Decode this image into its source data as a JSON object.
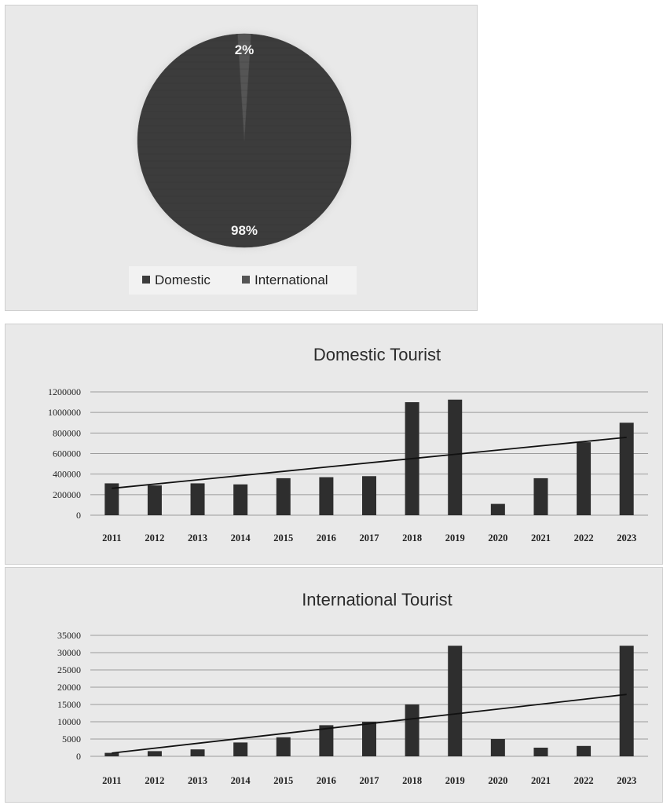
{
  "chart_data": [
    {
      "type": "pie",
      "categories": [
        "Domestic",
        "International"
      ],
      "values": [
        98,
        2
      ],
      "labels": [
        "98%",
        "2%"
      ],
      "legend": [
        "Domestic",
        "International"
      ],
      "legend_position": "bottom"
    },
    {
      "type": "bar",
      "title": "Domestic Tourist",
      "categories": [
        "2011",
        "2012",
        "2013",
        "2014",
        "2015",
        "2016",
        "2017",
        "2018",
        "2019",
        "2020",
        "2021",
        "2022",
        "2023"
      ],
      "values": [
        310000,
        290000,
        310000,
        300000,
        360000,
        370000,
        380000,
        1100000,
        1125000,
        110000,
        360000,
        710000,
        900000
      ],
      "trendline": "linear",
      "ylim": [
        0,
        1200000
      ],
      "yticks": [
        "0",
        "200000",
        "400000",
        "600000",
        "800000",
        "1000000",
        "1200000"
      ],
      "grid": true
    },
    {
      "type": "bar",
      "title": "International Tourist",
      "categories": [
        "2011",
        "2012",
        "2013",
        "2014",
        "2015",
        "2016",
        "2017",
        "2018",
        "2019",
        "2020",
        "2021",
        "2022",
        "2023"
      ],
      "values": [
        1000,
        1500,
        2000,
        4000,
        5500,
        9000,
        10000,
        15000,
        32000,
        5000,
        2500,
        3000,
        32000
      ],
      "trendline": "linear",
      "ylim": [
        0,
        35000
      ],
      "yticks": [
        "0",
        "5000",
        "10000",
        "15000",
        "20000",
        "25000",
        "30000",
        "35000"
      ],
      "grid": true
    }
  ]
}
